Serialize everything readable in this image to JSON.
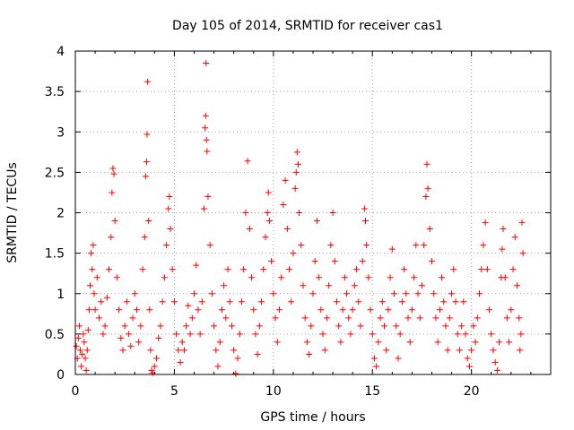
{
  "chart_data": {
    "type": "scatter",
    "title": "Day 105 of 2014, SRMTID for receiver cas1",
    "xlabel": "GPS time / hours",
    "ylabel": "SRMTID / TECUs",
    "xlim": [
      0,
      24
    ],
    "ylim": [
      0,
      4
    ],
    "x_ticks": [
      0,
      5,
      10,
      15,
      20
    ],
    "y_ticks": [
      0,
      0.5,
      1,
      1.5,
      2,
      2.5,
      3,
      3.5,
      4
    ],
    "x_tick_labels": [
      "0",
      "5",
      "10",
      "15",
      "20"
    ],
    "y_tick_labels": [
      "0",
      "0.5",
      "1",
      "1.5",
      "2",
      "2.5",
      "3",
      "3.5",
      "4"
    ],
    "grid": true,
    "marker": "+",
    "series": [
      {
        "name": "SRMTID",
        "color": "#ff0000",
        "points": [
          [
            0.05,
            0.35
          ],
          [
            0.1,
            0.2
          ],
          [
            0.15,
            0.45
          ],
          [
            0.2,
            0.6
          ],
          [
            0.25,
            0.3
          ],
          [
            0.3,
            0.1
          ],
          [
            0.35,
            0.25
          ],
          [
            0.4,
            0.5
          ],
          [
            0.45,
            0.4
          ],
          [
            0.5,
            0.2
          ],
          [
            0.55,
            0.05
          ],
          [
            0.6,
            0.3
          ],
          [
            0.65,
            0.55
          ],
          [
            0.7,
            0.8
          ],
          [
            0.75,
            1.1
          ],
          [
            0.8,
            1.5
          ],
          [
            0.85,
            1.3
          ],
          [
            0.9,
            1.6
          ],
          [
            0.95,
            1.0
          ],
          [
            1.0,
            0.8
          ],
          [
            1.1,
            1.2
          ],
          [
            1.2,
            0.7
          ],
          [
            1.3,
            0.9
          ],
          [
            1.4,
            0.5
          ],
          [
            1.5,
            0.6
          ],
          [
            1.6,
            0.95
          ],
          [
            1.7,
            1.3
          ],
          [
            1.8,
            1.7
          ],
          [
            1.85,
            2.25
          ],
          [
            1.9,
            2.55
          ],
          [
            1.95,
            2.48
          ],
          [
            2.0,
            1.9
          ],
          [
            2.1,
            1.2
          ],
          [
            2.2,
            0.8
          ],
          [
            2.3,
            0.45
          ],
          [
            2.4,
            0.3
          ],
          [
            2.5,
            0.6
          ],
          [
            2.6,
            0.9
          ],
          [
            2.7,
            0.5
          ],
          [
            2.8,
            0.35
          ],
          [
            2.9,
            0.7
          ],
          [
            3.0,
            1.0
          ],
          [
            3.1,
            0.8
          ],
          [
            3.2,
            0.4
          ],
          [
            3.3,
            0.6
          ],
          [
            3.4,
            1.3
          ],
          [
            3.5,
            1.7
          ],
          [
            3.55,
            2.45
          ],
          [
            3.6,
            2.63
          ],
          [
            3.62,
            2.97
          ],
          [
            3.65,
            3.62
          ],
          [
            3.7,
            1.9
          ],
          [
            3.75,
            0.8
          ],
          [
            3.8,
            0.3
          ],
          [
            3.85,
            0.05
          ],
          [
            3.9,
            0.02
          ],
          [
            4.0,
            0.1
          ],
          [
            4.1,
            0.2
          ],
          [
            4.2,
            0.45
          ],
          [
            4.3,
            0.6
          ],
          [
            4.4,
            0.9
          ],
          [
            4.5,
            1.2
          ],
          [
            4.6,
            1.6
          ],
          [
            4.7,
            2.05
          ],
          [
            4.75,
            2.2
          ],
          [
            4.8,
            1.8
          ],
          [
            4.9,
            1.3
          ],
          [
            5.0,
            0.9
          ],
          [
            5.1,
            0.5
          ],
          [
            5.2,
            0.3
          ],
          [
            5.3,
            0.15
          ],
          [
            5.4,
            0.4
          ],
          [
            5.5,
            0.3
          ],
          [
            5.6,
            0.6
          ],
          [
            5.7,
            0.85
          ],
          [
            5.8,
            0.5
          ],
          [
            5.9,
            0.7
          ],
          [
            6.0,
            1.0
          ],
          [
            6.1,
            1.35
          ],
          [
            6.2,
            0.8
          ],
          [
            6.3,
            0.5
          ],
          [
            6.4,
            0.9
          ],
          [
            6.5,
            2.05
          ],
          [
            6.55,
            3.05
          ],
          [
            6.58,
            3.2
          ],
          [
            6.6,
            3.85
          ],
          [
            6.62,
            2.9
          ],
          [
            6.65,
            2.76
          ],
          [
            6.7,
            2.2
          ],
          [
            6.8,
            1.6
          ],
          [
            6.9,
            1.0
          ],
          [
            7.0,
            0.6
          ],
          [
            7.1,
            0.3
          ],
          [
            7.2,
            0.1
          ],
          [
            7.3,
            0.4
          ],
          [
            7.4,
            0.8
          ],
          [
            7.5,
            1.1
          ],
          [
            7.6,
            0.7
          ],
          [
            7.7,
            1.3
          ],
          [
            7.8,
            0.9
          ],
          [
            7.9,
            0.6
          ],
          [
            8.0,
            0.3
          ],
          [
            8.1,
            0.01
          ],
          [
            8.2,
            0.2
          ],
          [
            8.3,
            0.5
          ],
          [
            8.4,
            0.9
          ],
          [
            8.5,
            1.3
          ],
          [
            8.6,
            2.0
          ],
          [
            8.7,
            2.64
          ],
          [
            8.8,
            1.8
          ],
          [
            8.9,
            1.2
          ],
          [
            9.0,
            0.8
          ],
          [
            9.1,
            0.5
          ],
          [
            9.2,
            0.25
          ],
          [
            9.3,
            0.6
          ],
          [
            9.4,
            0.9
          ],
          [
            9.5,
            1.3
          ],
          [
            9.6,
            1.7
          ],
          [
            9.7,
            2.0
          ],
          [
            9.75,
            2.25
          ],
          [
            9.8,
            1.9
          ],
          [
            9.9,
            1.4
          ],
          [
            10.0,
            1.0
          ],
          [
            10.1,
            0.7
          ],
          [
            10.2,
            0.4
          ],
          [
            10.3,
            0.8
          ],
          [
            10.4,
            1.2
          ],
          [
            10.5,
            2.1
          ],
          [
            10.6,
            2.4
          ],
          [
            10.7,
            1.8
          ],
          [
            10.8,
            1.3
          ],
          [
            10.9,
            0.9
          ],
          [
            11.0,
            1.5
          ],
          [
            11.1,
            2.3
          ],
          [
            11.15,
            2.5
          ],
          [
            11.2,
            2.75
          ],
          [
            11.25,
            2.6
          ],
          [
            11.3,
            2.0
          ],
          [
            11.4,
            1.6
          ],
          [
            11.5,
            1.1
          ],
          [
            11.6,
            0.7
          ],
          [
            11.7,
            0.4
          ],
          [
            11.8,
            0.25
          ],
          [
            11.9,
            0.6
          ],
          [
            12.0,
            1.0
          ],
          [
            12.1,
            1.4
          ],
          [
            12.2,
            1.9
          ],
          [
            12.3,
            1.2
          ],
          [
            12.4,
            0.8
          ],
          [
            12.5,
            0.5
          ],
          [
            12.6,
            0.3
          ],
          [
            12.7,
            0.7
          ],
          [
            12.8,
            1.1
          ],
          [
            12.9,
            1.6
          ],
          [
            13.0,
            2.0
          ],
          [
            13.1,
            1.4
          ],
          [
            13.2,
            0.9
          ],
          [
            13.3,
            0.6
          ],
          [
            13.4,
            0.4
          ],
          [
            13.5,
            0.8
          ],
          [
            13.6,
            1.2
          ],
          [
            13.7,
            1.0
          ],
          [
            13.8,
            0.7
          ],
          [
            13.9,
            0.5
          ],
          [
            14.0,
            0.8
          ],
          [
            14.1,
            1.1
          ],
          [
            14.2,
            1.3
          ],
          [
            14.3,
            0.9
          ],
          [
            14.4,
            0.6
          ],
          [
            14.5,
            1.4
          ],
          [
            14.6,
            2.05
          ],
          [
            14.65,
            1.9
          ],
          [
            14.7,
            1.6
          ],
          [
            14.8,
            1.2
          ],
          [
            14.9,
            0.8
          ],
          [
            15.0,
            0.5
          ],
          [
            15.1,
            0.2
          ],
          [
            15.2,
            0.1
          ],
          [
            15.3,
            0.4
          ],
          [
            15.4,
            0.7
          ],
          [
            15.5,
            0.9
          ],
          [
            15.6,
            0.6
          ],
          [
            15.7,
            0.3
          ],
          [
            15.8,
            0.8
          ],
          [
            15.9,
            1.2
          ],
          [
            16.0,
            1.55
          ],
          [
            16.1,
            1.0
          ],
          [
            16.2,
            0.6
          ],
          [
            16.3,
            0.2
          ],
          [
            16.4,
            0.5
          ],
          [
            16.5,
            0.9
          ],
          [
            16.6,
            1.3
          ],
          [
            16.7,
            1.0
          ],
          [
            16.8,
            0.7
          ],
          [
            16.9,
            0.4
          ],
          [
            17.0,
            0.8
          ],
          [
            17.1,
            1.2
          ],
          [
            17.2,
            1.6
          ],
          [
            17.3,
            1.0
          ],
          [
            17.4,
            0.7
          ],
          [
            17.5,
            1.1
          ],
          [
            17.6,
            1.6
          ],
          [
            17.7,
            2.2
          ],
          [
            17.75,
            2.6
          ],
          [
            17.8,
            2.3
          ],
          [
            17.9,
            1.8
          ],
          [
            18.0,
            1.4
          ],
          [
            18.1,
            1.0
          ],
          [
            18.2,
            0.7
          ],
          [
            18.3,
            0.4
          ],
          [
            18.4,
            0.8
          ],
          [
            18.5,
            1.2
          ],
          [
            18.6,
            0.9
          ],
          [
            18.7,
            0.6
          ],
          [
            18.8,
            0.3
          ],
          [
            18.9,
            0.7
          ],
          [
            19.0,
            1.0
          ],
          [
            19.1,
            1.3
          ],
          [
            19.2,
            0.9
          ],
          [
            19.3,
            0.5
          ],
          [
            19.4,
            0.3
          ],
          [
            19.5,
            0.6
          ],
          [
            19.6,
            0.9
          ],
          [
            19.7,
            0.5
          ],
          [
            19.8,
            0.2
          ],
          [
            19.9,
            0.1
          ],
          [
            20.0,
            0.3
          ],
          [
            20.1,
            0.6
          ],
          [
            20.2,
            0.4
          ],
          [
            20.3,
            0.7
          ],
          [
            20.4,
            1.0
          ],
          [
            20.5,
            1.3
          ],
          [
            20.6,
            1.6
          ],
          [
            20.7,
            1.88
          ],
          [
            20.8,
            1.3
          ],
          [
            20.9,
            0.8
          ],
          [
            21.0,
            0.5
          ],
          [
            21.1,
            0.3
          ],
          [
            21.2,
            0.15
          ],
          [
            21.3,
            0.05
          ],
          [
            21.4,
            0.4
          ],
          [
            21.5,
            1.2
          ],
          [
            21.55,
            1.55
          ],
          [
            21.6,
            1.8
          ],
          [
            21.7,
            1.2
          ],
          [
            21.8,
            0.7
          ],
          [
            21.9,
            0.4
          ],
          [
            22.0,
            0.8
          ],
          [
            22.1,
            1.3
          ],
          [
            22.2,
            1.7
          ],
          [
            22.3,
            1.1
          ],
          [
            22.4,
            0.7
          ],
          [
            22.45,
            0.3
          ],
          [
            22.5,
            0.5
          ],
          [
            22.55,
            1.88
          ],
          [
            22.6,
            1.5
          ]
        ]
      }
    ]
  }
}
